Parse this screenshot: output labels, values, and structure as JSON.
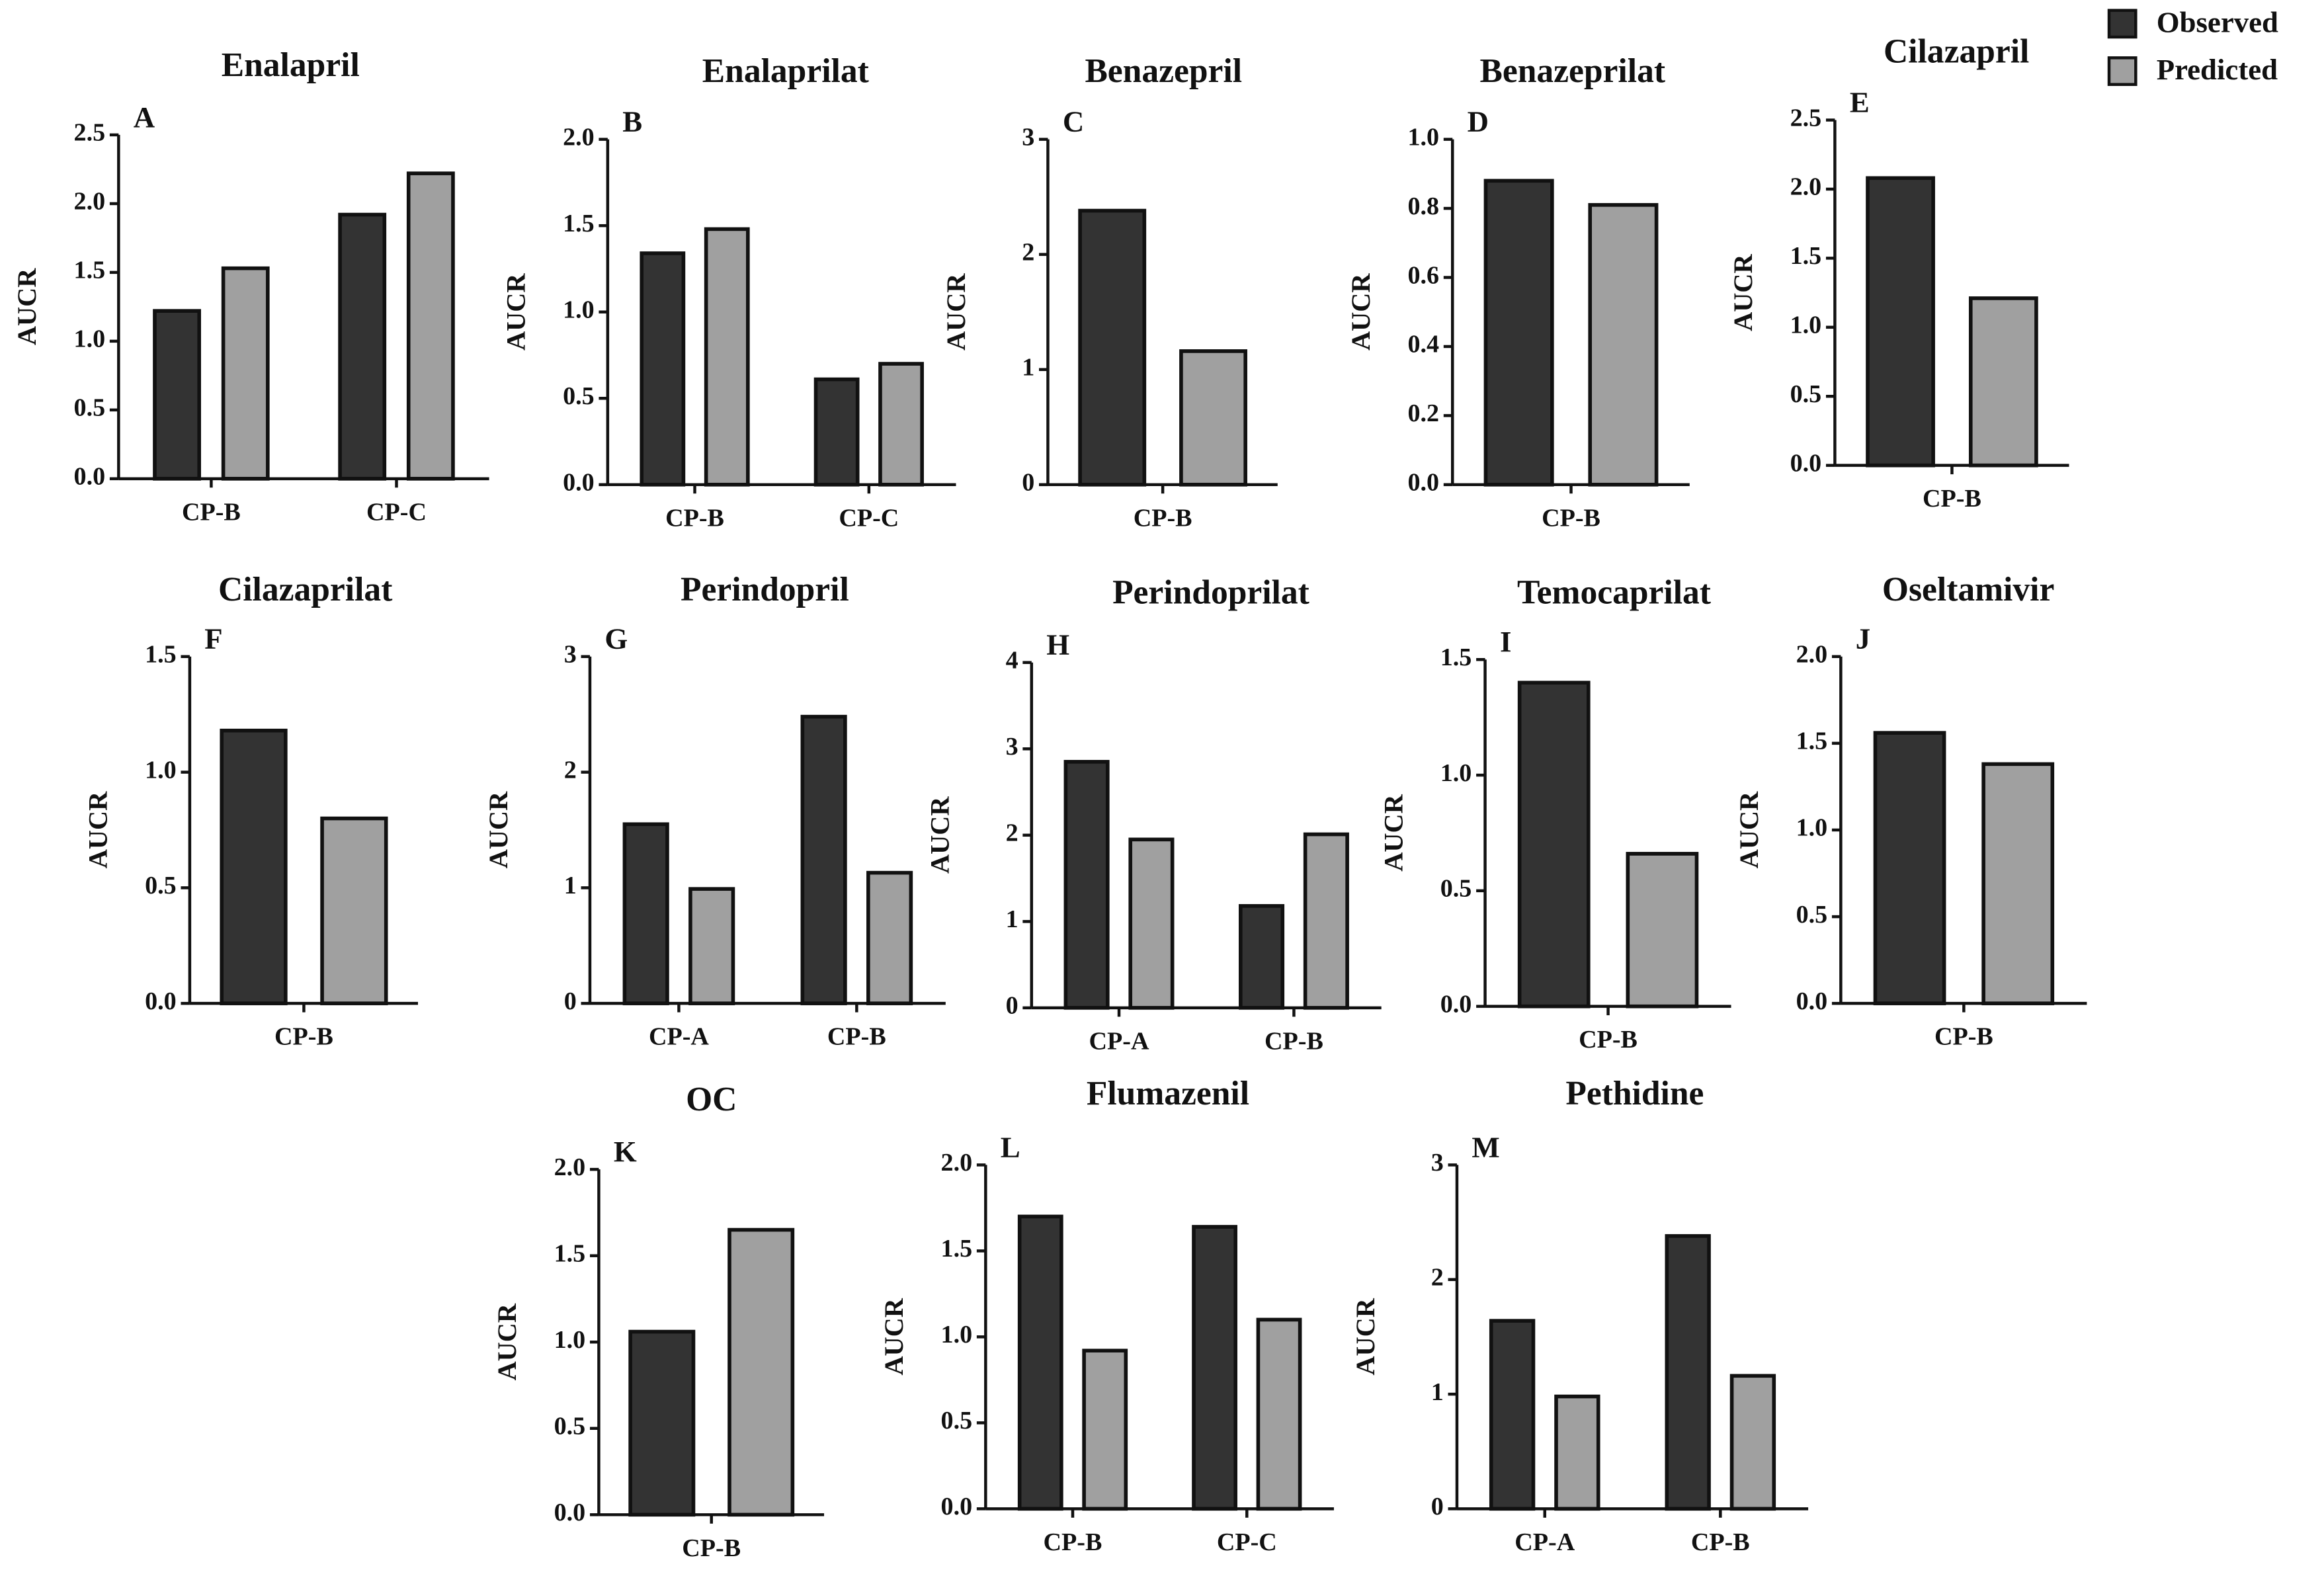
{
  "legend": {
    "items": [
      {
        "name": "Observed",
        "color": "#333333"
      },
      {
        "name": "Predicted",
        "color": "#a0a0a0"
      }
    ]
  },
  "chart_data": [
    {
      "type": "bar",
      "title": "Enalapril",
      "panel": "A",
      "ylabel": "AUCR",
      "categories": [
        "CP-B",
        "CP-C"
      ],
      "series": [
        {
          "values": [
            1.22,
            1.92
          ]
        },
        {
          "values": [
            1.53,
            2.22
          ]
        }
      ],
      "ylim": [
        0,
        2.5
      ],
      "yticks": [
        {
          "value": 0,
          "label": "0.0"
        },
        {
          "value": 0.5,
          "label": "0.5"
        },
        {
          "value": 1,
          "label": "1.0"
        },
        {
          "value": 1.5,
          "label": "1.5"
        },
        {
          "value": 2,
          "label": "2.0"
        },
        {
          "value": 2.5,
          "label": "2.5"
        }
      ]
    },
    {
      "type": "bar",
      "title": "Enalaprilat",
      "panel": "B",
      "ylabel": "AUCR",
      "categories": [
        "CP-B",
        "CP-C"
      ],
      "series": [
        {
          "values": [
            1.34,
            0.61
          ]
        },
        {
          "values": [
            1.48,
            0.7
          ]
        }
      ],
      "ylim": [
        0,
        2.0
      ],
      "yticks": [
        {
          "value": 0,
          "label": "0.0"
        },
        {
          "value": 0.5,
          "label": "0.5"
        },
        {
          "value": 1,
          "label": "1.0"
        },
        {
          "value": 1.5,
          "label": "1.5"
        },
        {
          "value": 2,
          "label": "2.0"
        }
      ]
    },
    {
      "type": "bar",
      "title": "Benazepril",
      "panel": "C",
      "ylabel": "AUCR",
      "categories": [
        "CP-B"
      ],
      "series": [
        {
          "values": [
            2.38
          ]
        },
        {
          "values": [
            1.16
          ]
        }
      ],
      "ylim": [
        0,
        3
      ],
      "yticks": [
        0,
        1,
        2,
        3
      ]
    },
    {
      "type": "bar",
      "title": "Benazeprilat",
      "panel": "D",
      "ylabel": "AUCR",
      "categories": [
        "CP-B"
      ],
      "series": [
        {
          "values": [
            0.88
          ]
        },
        {
          "values": [
            0.81
          ]
        }
      ],
      "ylim": [
        0,
        1.0
      ],
      "yticks": [
        {
          "value": 0,
          "label": "0.0"
        },
        {
          "value": 0.2,
          "label": "0.2"
        },
        {
          "value": 0.4,
          "label": "0.4"
        },
        {
          "value": 0.6,
          "label": "0.6"
        },
        {
          "value": 0.8,
          "label": "0.8"
        },
        {
          "value": 1,
          "label": "1.0"
        }
      ]
    },
    {
      "type": "bar",
      "title": "Cilazapril",
      "panel": "E",
      "ylabel": "AUCR",
      "categories": [
        "CP-B"
      ],
      "series": [
        {
          "values": [
            2.08
          ]
        },
        {
          "values": [
            1.21
          ]
        }
      ],
      "ylim": [
        0,
        2.5
      ],
      "yticks": [
        {
          "value": 0,
          "label": "0.0"
        },
        {
          "value": 0.5,
          "label": "0.5"
        },
        {
          "value": 1,
          "label": "1.0"
        },
        {
          "value": 1.5,
          "label": "1.5"
        },
        {
          "value": 2,
          "label": "2.0"
        },
        {
          "value": 2.5,
          "label": "2.5"
        }
      ]
    },
    {
      "type": "bar",
      "title": "Cilazaprilat",
      "panel": "F",
      "ylabel": "AUCR",
      "categories": [
        "CP-B"
      ],
      "series": [
        {
          "values": [
            1.18
          ]
        },
        {
          "values": [
            0.8
          ]
        }
      ],
      "ylim": [
        0,
        1.5
      ],
      "yticks": [
        {
          "value": 0,
          "label": "0.0"
        },
        {
          "value": 0.5,
          "label": "0.5"
        },
        {
          "value": 1,
          "label": "1.0"
        },
        {
          "value": 1.5,
          "label": "1.5"
        }
      ]
    },
    {
      "type": "bar",
      "title": "Perindopril",
      "panel": "G",
      "ylabel": "AUCR",
      "categories": [
        "CP-A",
        "CP-B"
      ],
      "series": [
        {
          "values": [
            1.55,
            2.48
          ]
        },
        {
          "values": [
            0.99,
            1.13
          ]
        }
      ],
      "ylim": [
        0,
        3
      ],
      "yticks": [
        0,
        1,
        2,
        3
      ]
    },
    {
      "type": "bar",
      "title": "Perindoprilat",
      "panel": "H",
      "ylabel": "AUCR",
      "categories": [
        "CP-A",
        "CP-B"
      ],
      "series": [
        {
          "values": [
            2.85,
            1.18
          ]
        },
        {
          "values": [
            1.95,
            2.01
          ]
        }
      ],
      "ylim": [
        0,
        4
      ],
      "yticks": [
        0,
        1,
        2,
        3,
        4
      ]
    },
    {
      "type": "bar",
      "title": "Temocaprilat",
      "panel": "I",
      "ylabel": "AUCR",
      "categories": [
        "CP-B"
      ],
      "series": [
        {
          "values": [
            1.4
          ]
        },
        {
          "values": [
            0.66
          ]
        }
      ],
      "ylim": [
        0,
        1.5
      ],
      "yticks": [
        {
          "value": 0,
          "label": "0.0"
        },
        {
          "value": 0.5,
          "label": "0.5"
        },
        {
          "value": 1,
          "label": "1.0"
        },
        {
          "value": 1.5,
          "label": "1.5"
        }
      ]
    },
    {
      "type": "bar",
      "title": "Oseltamivir",
      "panel": "J",
      "ylabel": "AUCR",
      "categories": [
        "CP-B"
      ],
      "series": [
        {
          "values": [
            1.56
          ]
        },
        {
          "values": [
            1.38
          ]
        }
      ],
      "ylim": [
        0,
        2.0
      ],
      "yticks": [
        {
          "value": 0,
          "label": "0.0"
        },
        {
          "value": 0.5,
          "label": "0.5"
        },
        {
          "value": 1,
          "label": "1.0"
        },
        {
          "value": 1.5,
          "label": "1.5"
        },
        {
          "value": 2,
          "label": "2.0"
        }
      ]
    },
    {
      "type": "bar",
      "title": "OC",
      "panel": "K",
      "ylabel": "AUCR",
      "categories": [
        "CP-B"
      ],
      "series": [
        {
          "values": [
            1.06
          ]
        },
        {
          "values": [
            1.65
          ]
        }
      ],
      "ylim": [
        0,
        2.0
      ],
      "yticks": [
        {
          "value": 0,
          "label": "0.0"
        },
        {
          "value": 0.5,
          "label": "0.5"
        },
        {
          "value": 1,
          "label": "1.0"
        },
        {
          "value": 1.5,
          "label": "1.5"
        },
        {
          "value": 2,
          "label": "2.0"
        }
      ]
    },
    {
      "type": "bar",
      "title": "Flumazenil",
      "panel": "L",
      "ylabel": "AUCR",
      "categories": [
        "CP-B",
        "CP-C"
      ],
      "series": [
        {
          "values": [
            1.7,
            1.64
          ]
        },
        {
          "values": [
            0.92,
            1.1
          ]
        }
      ],
      "ylim": [
        0,
        2.0
      ],
      "yticks": [
        {
          "value": 0,
          "label": "0.0"
        },
        {
          "value": 0.5,
          "label": "0.5"
        },
        {
          "value": 1,
          "label": "1.0"
        },
        {
          "value": 1.5,
          "label": "1.5"
        },
        {
          "value": 2,
          "label": "2.0"
        }
      ]
    },
    {
      "type": "bar",
      "title": "Pethidine",
      "panel": "M",
      "ylabel": "AUCR",
      "categories": [
        "CP-A",
        "CP-B"
      ],
      "series": [
        {
          "values": [
            1.64,
            2.38
          ]
        },
        {
          "values": [
            0.98,
            1.16
          ]
        }
      ],
      "ylim": [
        0,
        3
      ],
      "yticks": [
        0,
        1,
        2,
        3
      ]
    }
  ]
}
